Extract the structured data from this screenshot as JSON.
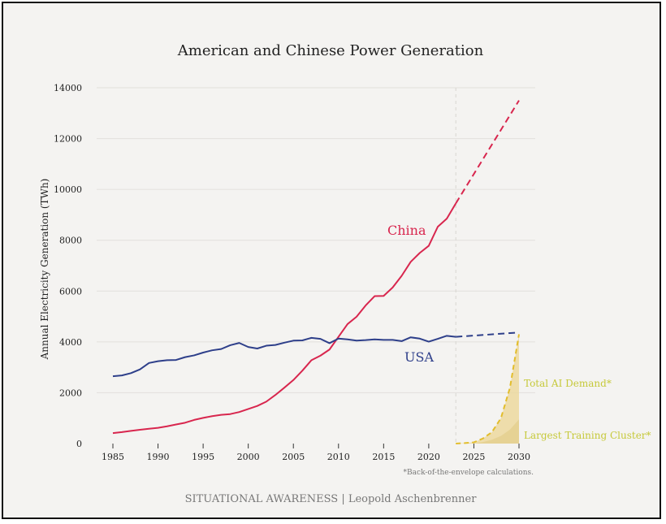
{
  "chart_data": {
    "type": "line",
    "title": "American and Chinese Power Generation",
    "ylabel": "Annual Electricity Generation (TWh)",
    "xlabel": "",
    "xlim": [
      1985,
      2030
    ],
    "ylim": [
      0,
      14000
    ],
    "x_ticks": [
      1985,
      1990,
      1995,
      2000,
      2005,
      2010,
      2015,
      2020,
      2025,
      2030
    ],
    "y_ticks": [
      0,
      2000,
      4000,
      6000,
      8000,
      10000,
      12000,
      14000
    ],
    "grid": true,
    "projection_start": 2023,
    "series": [
      {
        "name": "China",
        "color": "#d8264e",
        "x": [
          1985,
          1986,
          1987,
          1988,
          1989,
          1990,
          1991,
          1992,
          1993,
          1994,
          1995,
          1996,
          1997,
          1998,
          1999,
          2000,
          2001,
          2002,
          2003,
          2004,
          2005,
          2006,
          2007,
          2008,
          2009,
          2010,
          2011,
          2012,
          2013,
          2014,
          2015,
          2016,
          2017,
          2018,
          2019,
          2020,
          2021,
          2022,
          2023
        ],
        "values": [
          410,
          450,
          500,
          545,
          585,
          620,
          680,
          750,
          820,
          930,
          1010,
          1080,
          1130,
          1160,
          1240,
          1360,
          1480,
          1650,
          1910,
          2200,
          2500,
          2870,
          3280,
          3460,
          3700,
          4200,
          4700,
          4990,
          5430,
          5800,
          5810,
          6140,
          6600,
          7150,
          7500,
          7780,
          8530,
          8850,
          9450
        ],
        "projection": {
          "x": [
            2023,
            2030
          ],
          "values": [
            9450,
            13500
          ]
        }
      },
      {
        "name": "USA",
        "color": "#2e3f8a",
        "x": [
          1985,
          1986,
          1987,
          1988,
          1989,
          1990,
          1991,
          1992,
          1993,
          1994,
          1995,
          1996,
          1997,
          1998,
          1999,
          2000,
          2001,
          2002,
          2003,
          2004,
          2005,
          2006,
          2007,
          2008,
          2009,
          2010,
          2011,
          2012,
          2013,
          2014,
          2015,
          2016,
          2017,
          2018,
          2019,
          2020,
          2021,
          2022,
          2023
        ],
        "values": [
          2650,
          2680,
          2770,
          2920,
          3170,
          3240,
          3280,
          3290,
          3400,
          3470,
          3580,
          3670,
          3720,
          3870,
          3960,
          3800,
          3740,
          3850,
          3880,
          3970,
          4050,
          4060,
          4160,
          4120,
          3950,
          4130,
          4100,
          4050,
          4070,
          4100,
          4080,
          4080,
          4030,
          4180,
          4130,
          4010,
          4120,
          4240,
          4200
        ],
        "projection": {
          "x": [
            2023,
            2030
          ],
          "values": [
            4200,
            4370
          ]
        }
      },
      {
        "name": "Total AI Demand*",
        "color": "#e2bd2c",
        "fill": "#ecd79a",
        "x": [
          2023,
          2024,
          2025,
          2026,
          2027,
          2028,
          2029,
          2030
        ],
        "values": [
          0,
          20,
          50,
          200,
          450,
          1000,
          2200,
          4300
        ]
      },
      {
        "name": "Largest Training Cluster*",
        "color": "#e2cf8a",
        "fill": "#e3cf8e",
        "x": [
          2025,
          2026,
          2027,
          2028,
          2029,
          2030
        ],
        "values": [
          0,
          60,
          150,
          300,
          550,
          950
        ]
      }
    ],
    "footnote": "*Back-of-the-envelope calculations.",
    "credit": "SITUATIONAL AWARENESS | Leopold Aschenbrenner"
  }
}
